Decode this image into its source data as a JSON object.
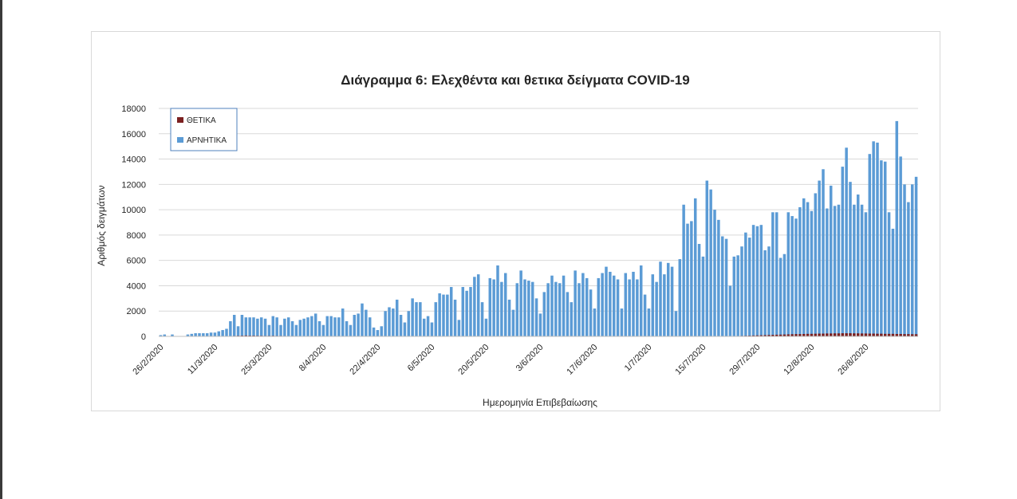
{
  "chart_data": {
    "type": "bar",
    "title": "Διάγραμμα 6: Ελεχθέντα και θετικα δείγματα COVID-19",
    "xlabel": "Ημερομηνία Επιβεβαίωσης",
    "ylabel": "Αριθμός δειγμάτων",
    "ylim": [
      0,
      18000
    ],
    "yticks": [
      0,
      2000,
      4000,
      6000,
      8000,
      10000,
      12000,
      14000,
      16000,
      18000
    ],
    "grid": true,
    "legend_position": "top-left",
    "x_start": "26/2/2020",
    "x_tick_labels": [
      "26/2/2020",
      "11/3/2020",
      "25/3/2020",
      "8/4/2020",
      "22/4/2020",
      "6/5/2020",
      "20/5/2020",
      "3/6/2020",
      "17/6/2020",
      "1/7/2020",
      "15/7/2020",
      "29/7/2020",
      "12/8/2020",
      "26/8/2020"
    ],
    "series": [
      {
        "name": "ΘΕΤΙΚΑ",
        "color": "#7b2020",
        "values": [
          0,
          0,
          0,
          0,
          0,
          0,
          0,
          0,
          0,
          0,
          0,
          0,
          5,
          5,
          10,
          10,
          15,
          20,
          30,
          40,
          50,
          60,
          70,
          60,
          60,
          50,
          50,
          40,
          45,
          50,
          40,
          40,
          35,
          30,
          35,
          30,
          30,
          25,
          25,
          20,
          20,
          20,
          15,
          15,
          15,
          15,
          10,
          10,
          10,
          10,
          8,
          8,
          8,
          8,
          8,
          8,
          8,
          8,
          6,
          6,
          6,
          5,
          5,
          5,
          5,
          5,
          5,
          4,
          4,
          4,
          4,
          4,
          4,
          4,
          4,
          3,
          3,
          3,
          3,
          3,
          3,
          3,
          3,
          3,
          3,
          3,
          3,
          3,
          3,
          3,
          3,
          3,
          3,
          3,
          3,
          3,
          3,
          3,
          3,
          3,
          3,
          3,
          3,
          3,
          3,
          3,
          3,
          3,
          3,
          3,
          3,
          3,
          3,
          3,
          3,
          3,
          3,
          3,
          3,
          3,
          3,
          3,
          3,
          3,
          3,
          3,
          3,
          3,
          3,
          3,
          3,
          3,
          3,
          3,
          3,
          3,
          3,
          3,
          3,
          3,
          3,
          3,
          5,
          5,
          8,
          10,
          15,
          20,
          25,
          30,
          40,
          50,
          60,
          70,
          80,
          90,
          100,
          110,
          120,
          130,
          140,
          150,
          160,
          170,
          180,
          180,
          190,
          200,
          200,
          210,
          220,
          220,
          230,
          230,
          240,
          240,
          250,
          250,
          250,
          240,
          240,
          230,
          230,
          220,
          220,
          210,
          210,
          200,
          200,
          200,
          190,
          190,
          180,
          180,
          170,
          170,
          160,
          160
        ]
      },
      {
        "name": "ΑΡΝΗΤΙΚΑ",
        "color": "#5b9bd5",
        "values": [
          100,
          150,
          0,
          150,
          0,
          0,
          0,
          150,
          200,
          250,
          250,
          250,
          250,
          300,
          300,
          400,
          500,
          600,
          1200,
          1700,
          800,
          1700,
          1500,
          1500,
          1500,
          1400,
          1500,
          1400,
          900,
          1600,
          1500,
          900,
          1400,
          1500,
          1200,
          900,
          1300,
          1400,
          1500,
          1600,
          1800,
          1200,
          900,
          1600,
          1600,
          1500,
          1500,
          2200,
          1200,
          900,
          1700,
          1800,
          2600,
          2100,
          1500,
          700,
          500,
          800,
          2000,
          2300,
          2200,
          2900,
          1700,
          1100,
          2000,
          3000,
          2700,
          2700,
          1400,
          1600,
          1100,
          2700,
          3400,
          3300,
          3300,
          3900,
          2900,
          1300,
          3900,
          3600,
          3900,
          4700,
          4900,
          2700,
          1400,
          4600,
          4500,
          5600,
          4300,
          5000,
          2900,
          2100,
          4200,
          5200,
          4500,
          4400,
          4300,
          3000,
          1800,
          3500,
          4200,
          4800,
          4300,
          4200,
          4800,
          3500,
          2700,
          5200,
          4200,
          5000,
          4600,
          3700,
          2200,
          4600,
          5000,
          5500,
          5100,
          4800,
          4500,
          2200,
          5000,
          4500,
          5100,
          4500,
          5600,
          3300,
          2200,
          4900,
          4300,
          5900,
          4900,
          5800,
          5500,
          2000,
          6100,
          10400,
          8900,
          9100,
          10900,
          7300,
          6300,
          12300,
          11600,
          10000,
          9200,
          7900,
          7700,
          4000,
          6300,
          6400,
          7100,
          8200,
          7800,
          8800,
          8700,
          8800,
          6800,
          7100,
          9800,
          9800,
          6200,
          6500,
          9800,
          9500,
          9300,
          10200,
          10900,
          10600,
          9900,
          11300,
          12300,
          13200,
          10100,
          11900,
          10300,
          10400,
          13400,
          14900,
          12200,
          10400,
          11200,
          10400,
          9800,
          14400,
          15400,
          15300,
          13900,
          13800,
          9800,
          8500,
          17000,
          14200,
          12000,
          10600,
          12000,
          12600
        ]
      }
    ]
  }
}
